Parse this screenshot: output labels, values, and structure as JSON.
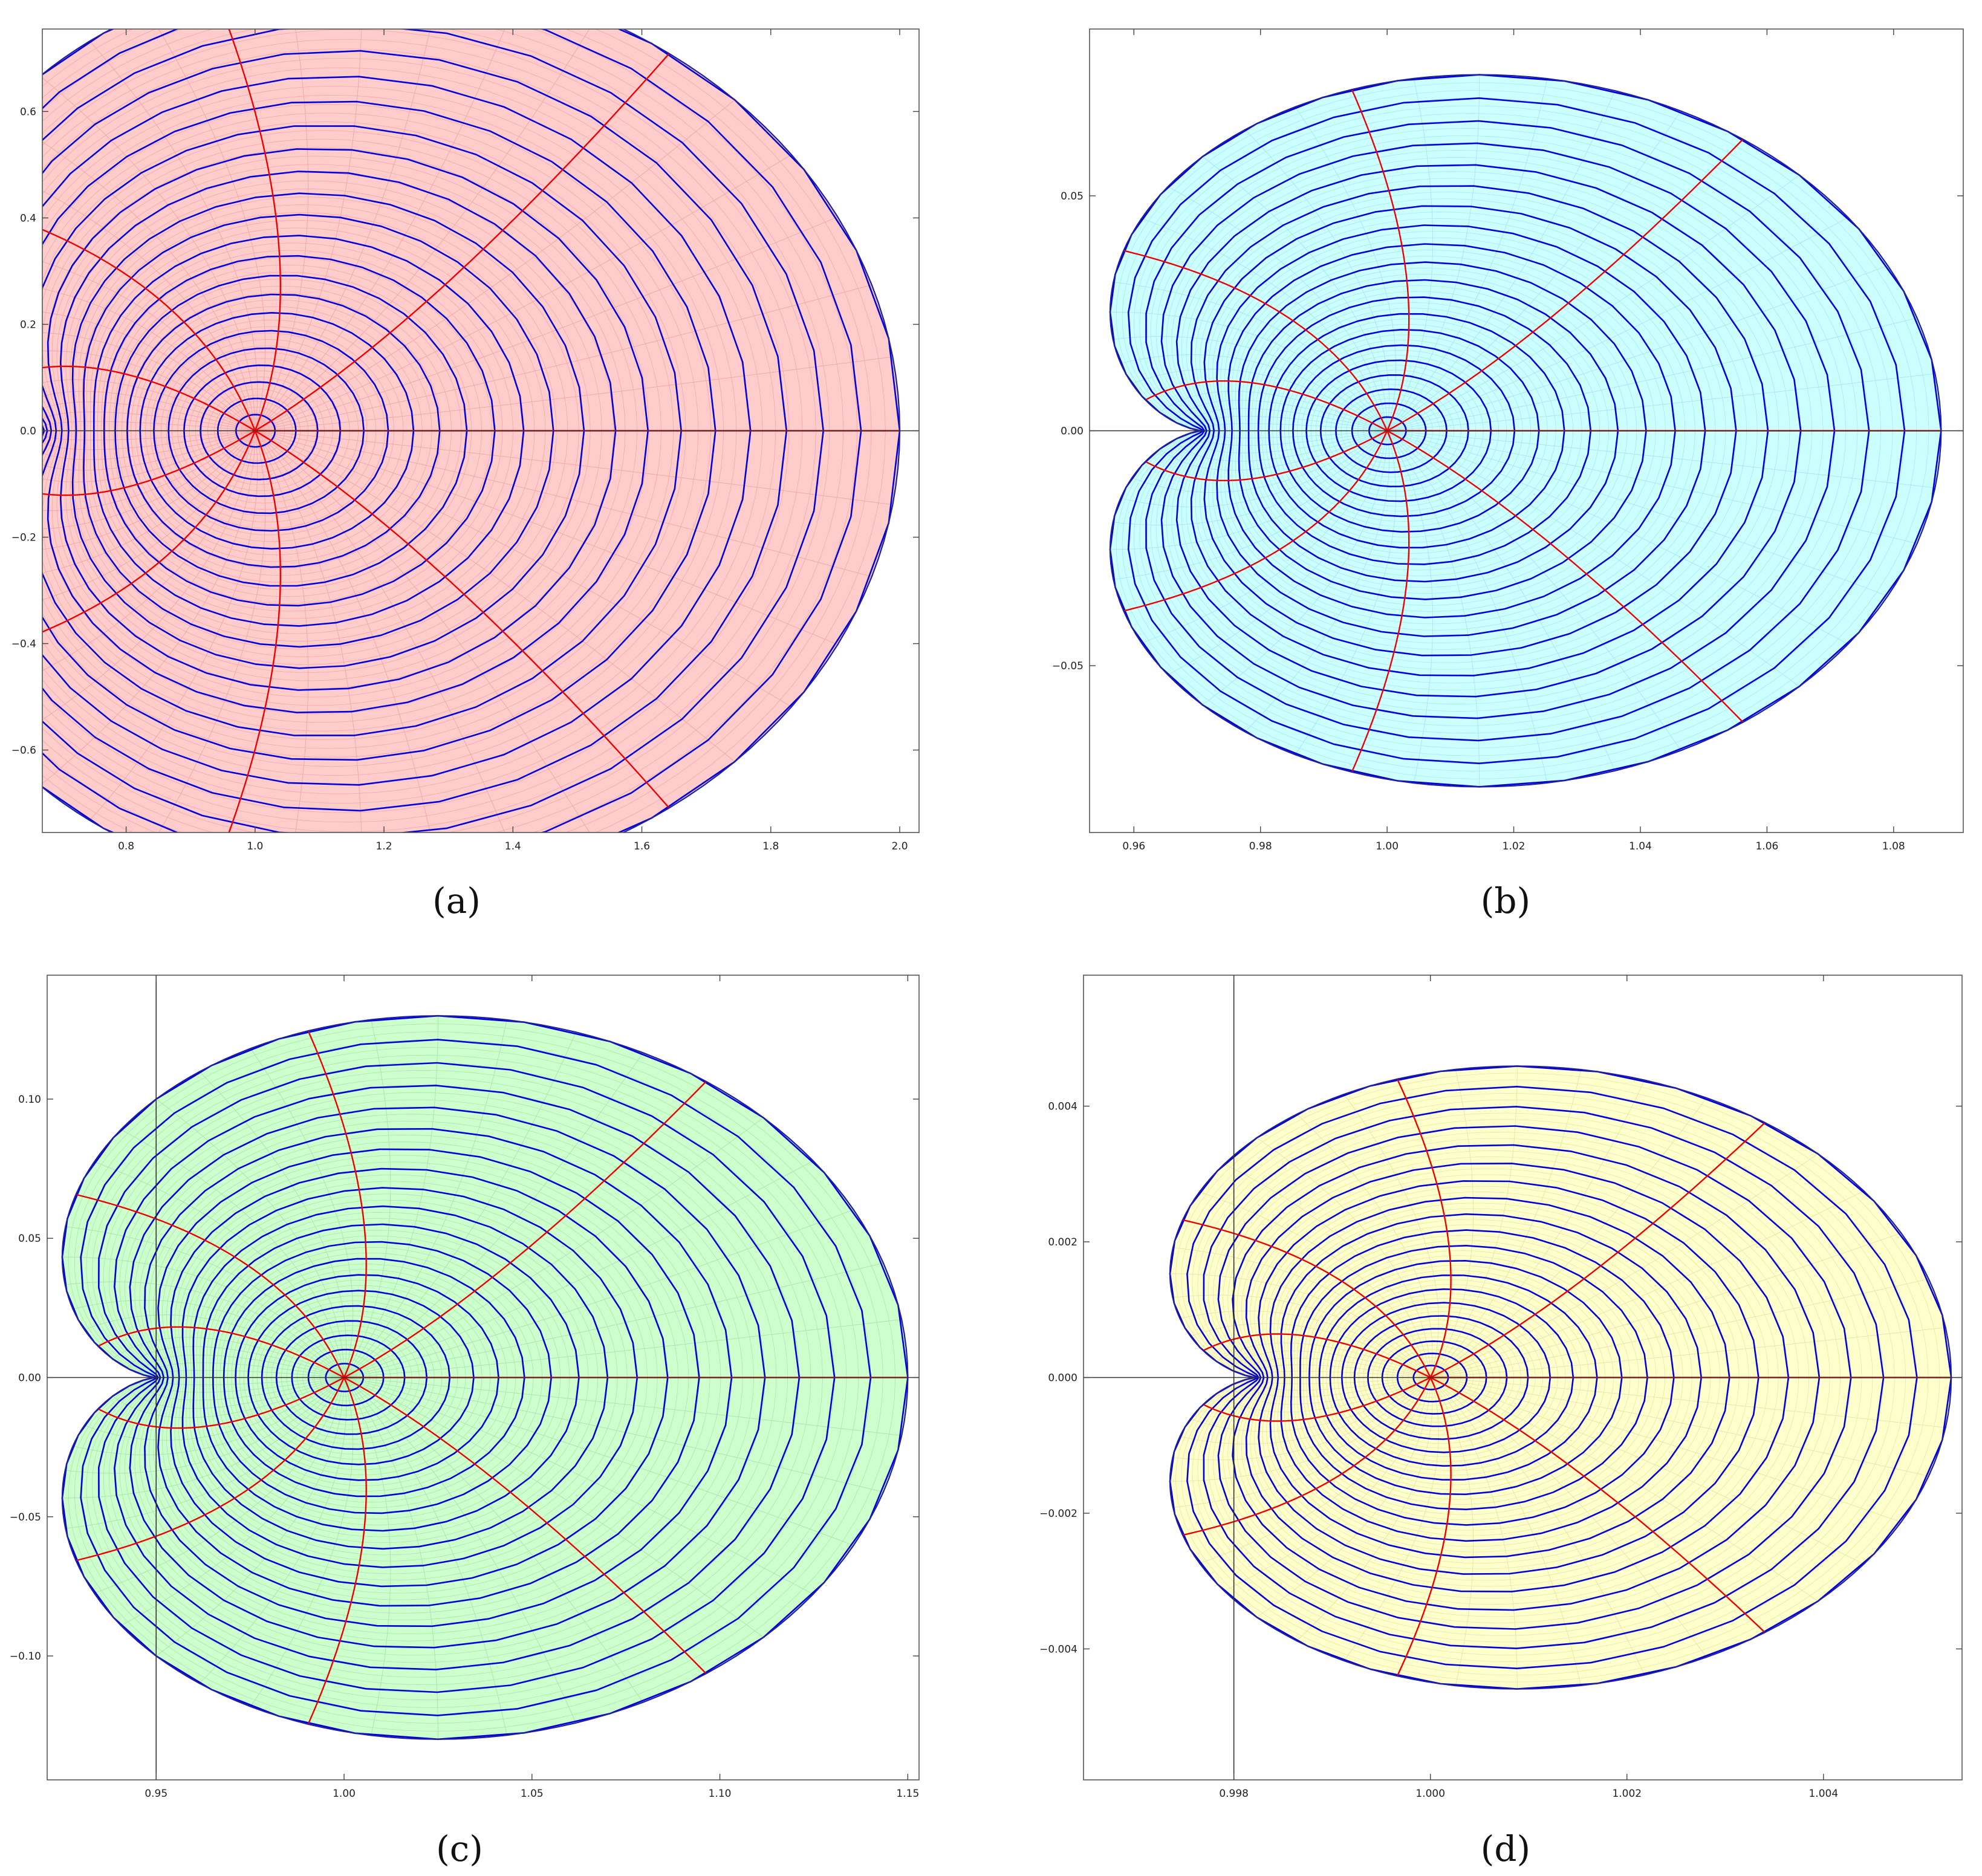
{
  "panels": [
    {
      "id": "a",
      "caption": "(a)",
      "fill": "#ffcccc",
      "outline_color": "#1f1f9e",
      "level_curve_color": "#0000dd",
      "ray_color": "#ee0000",
      "fine_grid_color": "#f2a8a8",
      "center": [
        1.0,
        0.0
      ],
      "xlim": [
        0.67,
        2.03
      ],
      "ylim": [
        -0.755,
        0.755
      ],
      "extent_right": 1.0,
      "rays": 10,
      "levels": 22,
      "vertical_line_x": null,
      "x_ticks": [
        "0.8",
        "1.0",
        "1.2",
        "1.4",
        "1.6",
        "1.8",
        "2.0"
      ],
      "y_ticks": [
        "-0.6",
        "-0.4",
        "-0.2",
        "0.0",
        "0.2",
        "0.4",
        "0.6"
      ]
    },
    {
      "id": "b",
      "caption": "(b)",
      "fill": "#ccffff",
      "outline_color": "#1f1f9e",
      "level_curve_color": "#0000dd",
      "ray_color": "#ee0000",
      "fine_grid_color": "#a8e8ee",
      "center": [
        1.0,
        0.0
      ],
      "xlim": [
        0.953,
        1.091
      ],
      "ylim": [
        -0.0855,
        0.0855
      ],
      "extent_right": 0.0875,
      "rays": 10,
      "levels": 20,
      "vertical_line_x": null,
      "x_ticks": [
        "0.96",
        "0.98",
        "1.00",
        "1.02",
        "1.04",
        "1.06",
        "1.08"
      ],
      "y_ticks": [
        "-0.05",
        "0.00",
        "0.05"
      ]
    },
    {
      "id": "c",
      "caption": "(c)",
      "fill": "#ccffcc",
      "outline_color": "#1f1f9e",
      "level_curve_color": "#0000dd",
      "ray_color": "#ee0000",
      "fine_grid_color": "#a8e6b0",
      "center": [
        1.0,
        0.0
      ],
      "xlim": [
        0.921,
        1.153
      ],
      "ylim": [
        -0.1445,
        0.1445
      ],
      "extent_right": 0.15,
      "rays": 10,
      "levels": 20,
      "vertical_line_x": 0.95,
      "x_ticks": [
        "0.95",
        "1.00",
        "1.05",
        "1.10",
        "1.15"
      ],
      "y_ticks": [
        "-0.10",
        "-0.05",
        "0.00",
        "0.05",
        "0.10"
      ]
    },
    {
      "id": "d",
      "caption": "(d)",
      "fill": "#ffffcc",
      "outline_color": "#1f1f9e",
      "level_curve_color": "#0000dd",
      "ray_color": "#ee0000",
      "fine_grid_color": "#e6e6a8",
      "center": [
        1.0,
        0.0
      ],
      "xlim": [
        0.99647,
        1.00541
      ],
      "ylim": [
        -0.00593,
        0.00593
      ],
      "extent_right": 0.0053,
      "rays": 10,
      "levels": 20,
      "vertical_line_x": 0.998,
      "x_ticks": [
        "0.998",
        "1.000",
        "1.002",
        "1.004"
      ],
      "y_ticks": [
        "-0.004",
        "-0.002",
        "0.000",
        "0.002",
        "0.004"
      ]
    }
  ]
}
